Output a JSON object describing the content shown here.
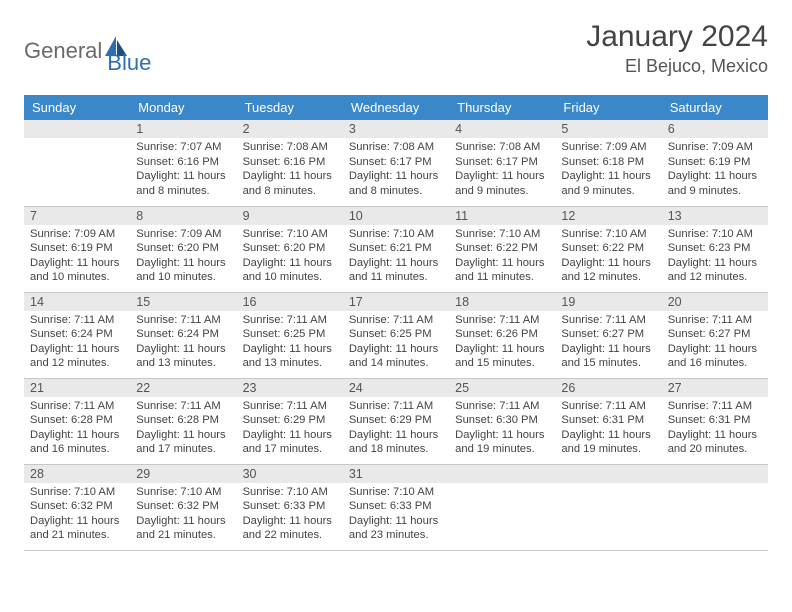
{
  "logo": {
    "text1": "General",
    "text2": "Blue"
  },
  "title": "January 2024",
  "location": "El Bejuco, Mexico",
  "colors": {
    "header_bg": "#3a88c9",
    "header_text": "#ffffff",
    "daynum_bg": "#e9e9e9",
    "border": "#c7c7c7",
    "logo_gray": "#6a6a6a",
    "logo_blue": "#2d6fb5"
  },
  "days": [
    "Sunday",
    "Monday",
    "Tuesday",
    "Wednesday",
    "Thursday",
    "Friday",
    "Saturday"
  ],
  "weeks": [
    [
      {
        "n": "",
        "sr": "",
        "ss": "",
        "dl": ""
      },
      {
        "n": "1",
        "sr": "Sunrise: 7:07 AM",
        "ss": "Sunset: 6:16 PM",
        "dl": "Daylight: 11 hours and 8 minutes."
      },
      {
        "n": "2",
        "sr": "Sunrise: 7:08 AM",
        "ss": "Sunset: 6:16 PM",
        "dl": "Daylight: 11 hours and 8 minutes."
      },
      {
        "n": "3",
        "sr": "Sunrise: 7:08 AM",
        "ss": "Sunset: 6:17 PM",
        "dl": "Daylight: 11 hours and 8 minutes."
      },
      {
        "n": "4",
        "sr": "Sunrise: 7:08 AM",
        "ss": "Sunset: 6:17 PM",
        "dl": "Daylight: 11 hours and 9 minutes."
      },
      {
        "n": "5",
        "sr": "Sunrise: 7:09 AM",
        "ss": "Sunset: 6:18 PM",
        "dl": "Daylight: 11 hours and 9 minutes."
      },
      {
        "n": "6",
        "sr": "Sunrise: 7:09 AM",
        "ss": "Sunset: 6:19 PM",
        "dl": "Daylight: 11 hours and 9 minutes."
      }
    ],
    [
      {
        "n": "7",
        "sr": "Sunrise: 7:09 AM",
        "ss": "Sunset: 6:19 PM",
        "dl": "Daylight: 11 hours and 10 minutes."
      },
      {
        "n": "8",
        "sr": "Sunrise: 7:09 AM",
        "ss": "Sunset: 6:20 PM",
        "dl": "Daylight: 11 hours and 10 minutes."
      },
      {
        "n": "9",
        "sr": "Sunrise: 7:10 AM",
        "ss": "Sunset: 6:20 PM",
        "dl": "Daylight: 11 hours and 10 minutes."
      },
      {
        "n": "10",
        "sr": "Sunrise: 7:10 AM",
        "ss": "Sunset: 6:21 PM",
        "dl": "Daylight: 11 hours and 11 minutes."
      },
      {
        "n": "11",
        "sr": "Sunrise: 7:10 AM",
        "ss": "Sunset: 6:22 PM",
        "dl": "Daylight: 11 hours and 11 minutes."
      },
      {
        "n": "12",
        "sr": "Sunrise: 7:10 AM",
        "ss": "Sunset: 6:22 PM",
        "dl": "Daylight: 11 hours and 12 minutes."
      },
      {
        "n": "13",
        "sr": "Sunrise: 7:10 AM",
        "ss": "Sunset: 6:23 PM",
        "dl": "Daylight: 11 hours and 12 minutes."
      }
    ],
    [
      {
        "n": "14",
        "sr": "Sunrise: 7:11 AM",
        "ss": "Sunset: 6:24 PM",
        "dl": "Daylight: 11 hours and 12 minutes."
      },
      {
        "n": "15",
        "sr": "Sunrise: 7:11 AM",
        "ss": "Sunset: 6:24 PM",
        "dl": "Daylight: 11 hours and 13 minutes."
      },
      {
        "n": "16",
        "sr": "Sunrise: 7:11 AM",
        "ss": "Sunset: 6:25 PM",
        "dl": "Daylight: 11 hours and 13 minutes."
      },
      {
        "n": "17",
        "sr": "Sunrise: 7:11 AM",
        "ss": "Sunset: 6:25 PM",
        "dl": "Daylight: 11 hours and 14 minutes."
      },
      {
        "n": "18",
        "sr": "Sunrise: 7:11 AM",
        "ss": "Sunset: 6:26 PM",
        "dl": "Daylight: 11 hours and 15 minutes."
      },
      {
        "n": "19",
        "sr": "Sunrise: 7:11 AM",
        "ss": "Sunset: 6:27 PM",
        "dl": "Daylight: 11 hours and 15 minutes."
      },
      {
        "n": "20",
        "sr": "Sunrise: 7:11 AM",
        "ss": "Sunset: 6:27 PM",
        "dl": "Daylight: 11 hours and 16 minutes."
      }
    ],
    [
      {
        "n": "21",
        "sr": "Sunrise: 7:11 AM",
        "ss": "Sunset: 6:28 PM",
        "dl": "Daylight: 11 hours and 16 minutes."
      },
      {
        "n": "22",
        "sr": "Sunrise: 7:11 AM",
        "ss": "Sunset: 6:28 PM",
        "dl": "Daylight: 11 hours and 17 minutes."
      },
      {
        "n": "23",
        "sr": "Sunrise: 7:11 AM",
        "ss": "Sunset: 6:29 PM",
        "dl": "Daylight: 11 hours and 17 minutes."
      },
      {
        "n": "24",
        "sr": "Sunrise: 7:11 AM",
        "ss": "Sunset: 6:29 PM",
        "dl": "Daylight: 11 hours and 18 minutes."
      },
      {
        "n": "25",
        "sr": "Sunrise: 7:11 AM",
        "ss": "Sunset: 6:30 PM",
        "dl": "Daylight: 11 hours and 19 minutes."
      },
      {
        "n": "26",
        "sr": "Sunrise: 7:11 AM",
        "ss": "Sunset: 6:31 PM",
        "dl": "Daylight: 11 hours and 19 minutes."
      },
      {
        "n": "27",
        "sr": "Sunrise: 7:11 AM",
        "ss": "Sunset: 6:31 PM",
        "dl": "Daylight: 11 hours and 20 minutes."
      }
    ],
    [
      {
        "n": "28",
        "sr": "Sunrise: 7:10 AM",
        "ss": "Sunset: 6:32 PM",
        "dl": "Daylight: 11 hours and 21 minutes."
      },
      {
        "n": "29",
        "sr": "Sunrise: 7:10 AM",
        "ss": "Sunset: 6:32 PM",
        "dl": "Daylight: 11 hours and 21 minutes."
      },
      {
        "n": "30",
        "sr": "Sunrise: 7:10 AM",
        "ss": "Sunset: 6:33 PM",
        "dl": "Daylight: 11 hours and 22 minutes."
      },
      {
        "n": "31",
        "sr": "Sunrise: 7:10 AM",
        "ss": "Sunset: 6:33 PM",
        "dl": "Daylight: 11 hours and 23 minutes."
      },
      {
        "n": "",
        "sr": "",
        "ss": "",
        "dl": ""
      },
      {
        "n": "",
        "sr": "",
        "ss": "",
        "dl": ""
      },
      {
        "n": "",
        "sr": "",
        "ss": "",
        "dl": ""
      }
    ]
  ]
}
